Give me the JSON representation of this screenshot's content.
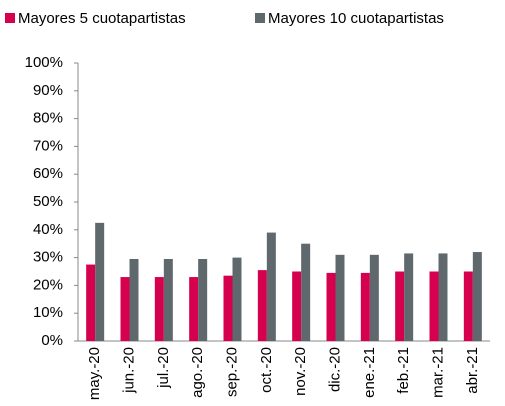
{
  "chart_data": {
    "type": "bar",
    "categories": [
      "may.-20",
      "jun.-20",
      "jul.-20",
      "ago.-20",
      "sep.-20",
      "oct.-20",
      "nov.-20",
      "dic.-20",
      "ene.-21",
      "feb.-21",
      "mar.-21",
      "abr.-21"
    ],
    "series": [
      {
        "name": "Mayores 5 cuotapartistas",
        "color": "#d5004e",
        "values": [
          27.5,
          23,
          23,
          23,
          23.5,
          25.5,
          25,
          24.5,
          24.5,
          25,
          25,
          25
        ]
      },
      {
        "name": "Mayores 10 cuotapartistas",
        "color": "#5f686d",
        "values": [
          42.5,
          29.5,
          29.5,
          29.5,
          30,
          39,
          35,
          31,
          31,
          31.5,
          31.5,
          32
        ]
      }
    ],
    "ylim": [
      0,
      100
    ],
    "yticks": [
      {
        "value": 0,
        "label": "0%"
      },
      {
        "value": 10,
        "label": "10%"
      },
      {
        "value": 20,
        "label": "20%"
      },
      {
        "value": 30,
        "label": "30%"
      },
      {
        "value": 40,
        "label": "40%"
      },
      {
        "value": 50,
        "label": "50%"
      },
      {
        "value": 60,
        "label": "60%"
      },
      {
        "value": 70,
        "label": "70%"
      },
      {
        "value": 80,
        "label": "80%"
      },
      {
        "value": 90,
        "label": "90%"
      },
      {
        "value": 100,
        "label": "100%"
      }
    ],
    "legend": "top"
  }
}
